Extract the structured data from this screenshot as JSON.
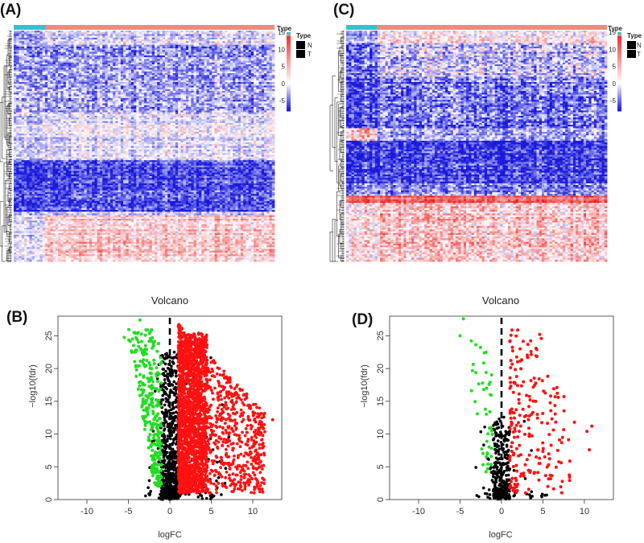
{
  "panels": {
    "A": {
      "label": "(A)"
    },
    "B": {
      "label": "(B)"
    },
    "C": {
      "label": "(C)"
    },
    "D": {
      "label": "(D)"
    }
  },
  "colors": {
    "heat_low": "#1a1adc",
    "heat_mid": "#ffffff",
    "heat_high": "#ee2222",
    "type_N": "#33c3cc",
    "type_T": "#f08a80",
    "down": "#22dd22",
    "up": "#ff1111",
    "ns": "#000000"
  },
  "chart_data": [
    {
      "panel": "A",
      "type": "heatmap",
      "annotation_title": "Type",
      "groups": [
        "N",
        "T"
      ],
      "legend_title": "Type",
      "legend_entries": [
        "N",
        "T"
      ],
      "color_scale": {
        "title": "Type",
        "ticks": [
          15,
          10,
          5,
          0,
          -5
        ],
        "range": [
          -8,
          15
        ]
      }
    },
    {
      "panel": "B",
      "type": "scatter",
      "title": "Volcano",
      "xlabel": "logFC",
      "ylabel": "−log10(fdr)",
      "xlim": [
        -13.5,
        13.5
      ],
      "ylim": [
        0,
        28
      ],
      "xticks": [
        -10,
        -5,
        0,
        5,
        10
      ],
      "yticks": [
        0,
        5,
        10,
        15,
        20,
        25
      ],
      "vline": 0,
      "summary": {
        "down_points": 300,
        "up_points": 2400,
        "ns_points": 800,
        "max_logFC": 12.5,
        "min_logFC": -5.5,
        "max_neglog10fdr": 27.5
      }
    },
    {
      "panel": "C",
      "type": "heatmap",
      "annotation_title": "Type",
      "groups": [
        "N",
        "T"
      ],
      "legend_title": "Type",
      "legend_entries": [
        "N",
        "T"
      ],
      "color_scale": {
        "title": "Type",
        "ticks": [
          15,
          10,
          5,
          0,
          -5
        ],
        "range": [
          -8,
          15
        ]
      }
    },
    {
      "panel": "D",
      "type": "scatter",
      "title": "Volcano",
      "xlabel": "logFC",
      "ylabel": "−log10(fdr)",
      "xlim": [
        -13.5,
        13.5
      ],
      "ylim": [
        0,
        28
      ],
      "xticks": [
        -10,
        -5,
        0,
        5,
        10
      ],
      "yticks": [
        0,
        5,
        10,
        15,
        20,
        25
      ],
      "vline": 0,
      "summary": {
        "down_points": 45,
        "up_points": 200,
        "ns_points": 350,
        "max_logFC": 11,
        "min_logFC": -5,
        "max_neglog10fdr": 27.5
      }
    }
  ]
}
